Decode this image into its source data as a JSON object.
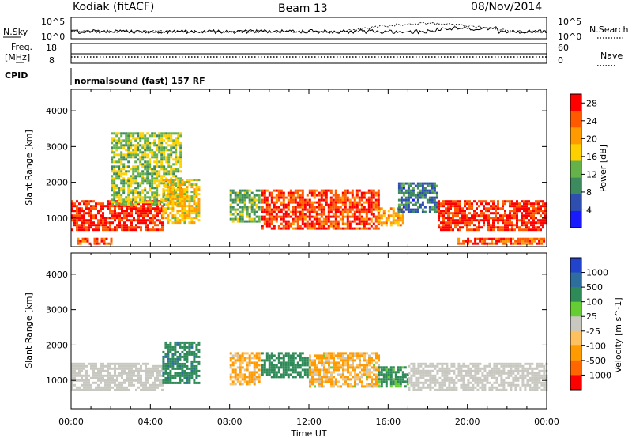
{
  "header": {
    "station": "Kodiak (fitACF)",
    "beam": "Beam 13",
    "date": "08/Nov/2014"
  },
  "top_panels": {
    "nsky_label": "N.Sky",
    "nsky_ticks": [
      "10^5",
      "10^0"
    ],
    "nsearch_label": "N.Search",
    "nsearch_ticks": [
      "10^5",
      "10^0"
    ],
    "freq_label_1": "Freq.",
    "freq_label_2": "[MHz]",
    "freq_ticks": [
      "18",
      "8"
    ],
    "nave_label": "Nave",
    "nave_ticks": [
      "60",
      "0"
    ],
    "cpid_label": "CPID",
    "cpid_text": "normalsound (fast) 157 RF"
  },
  "colors": {
    "power_scale": [
      "#1a1aff",
      "#2e4fb0",
      "#3d8a5e",
      "#66b24a",
      "#ffd000",
      "#ff9a00",
      "#ff5a00",
      "#ff0000"
    ],
    "velocity_scale": [
      "#ff0000",
      "#ff6600",
      "#ff9a00",
      "#ffc060",
      "#c8c8c0",
      "#66cc33",
      "#2e8b57",
      "#2e6e9e",
      "#2244cc"
    ],
    "ground_scatter": "#c8c8c0"
  },
  "chart_data": [
    {
      "type": "heatmap",
      "title": "",
      "xlabel": "Time UT",
      "ylabel": "Slant Range [km]",
      "x_ticks": [
        "00:00",
        "04:00",
        "08:00",
        "12:00",
        "16:00",
        "20:00",
        "00:00"
      ],
      "xlim": [
        0,
        24
      ],
      "y_ticks": [
        "1000",
        "2000",
        "3000",
        "4000"
      ],
      "ylim": [
        200,
        4600
      ],
      "colorbar_label": "Power [dB]",
      "colorbar_ticks": [
        "4",
        "8",
        "12",
        "16",
        "20",
        "24",
        "28"
      ],
      "colorbar_range": [
        0,
        30
      ],
      "regions": [
        {
          "t0": 0.0,
          "t1": 4.6,
          "r0": 700,
          "r1": 1500,
          "level": 27
        },
        {
          "t0": 0.3,
          "t1": 2.0,
          "r0": 300,
          "r1": 450,
          "level": 25
        },
        {
          "t0": 2.0,
          "t1": 5.5,
          "r0": 1400,
          "r1": 3400,
          "level": 14
        },
        {
          "t0": 4.6,
          "t1": 6.5,
          "r0": 900,
          "r1": 2100,
          "level": 18
        },
        {
          "t0": 8.0,
          "t1": 9.5,
          "r0": 900,
          "r1": 1800,
          "level": 12
        },
        {
          "t0": 9.6,
          "t1": 15.5,
          "r0": 700,
          "r1": 1800,
          "level": 26
        },
        {
          "t0": 15.5,
          "t1": 16.8,
          "r0": 800,
          "r1": 1300,
          "level": 20
        },
        {
          "t0": 16.5,
          "t1": 18.5,
          "r0": 1200,
          "r1": 2000,
          "level": 8
        },
        {
          "t0": 18.5,
          "t1": 24.0,
          "r0": 700,
          "r1": 1500,
          "level": 27
        },
        {
          "t0": 19.5,
          "t1": 24.0,
          "r0": 300,
          "r1": 450,
          "level": 25
        }
      ]
    },
    {
      "type": "heatmap",
      "title": "",
      "xlabel": "Time UT",
      "ylabel": "Slant Range [km]",
      "x_ticks": [
        "00:00",
        "04:00",
        "08:00",
        "12:00",
        "16:00",
        "20:00",
        "00:00"
      ],
      "xlim": [
        0,
        24
      ],
      "y_ticks": [
        "1000",
        "2000",
        "3000",
        "4000"
      ],
      "ylim": [
        200,
        4600
      ],
      "colorbar_label": "Velocity [m s^-1]",
      "colorbar_ticks": [
        "1000",
        "500",
        "100",
        "25",
        "-25",
        "-100",
        "-500",
        "-1000"
      ],
      "colorbar_range": [
        -1000,
        1000
      ],
      "regions": [
        {
          "t0": 0.0,
          "t1": 4.6,
          "r0": 700,
          "r1": 1500,
          "value": 0,
          "ground": true
        },
        {
          "t0": 4.6,
          "t1": 6.5,
          "r0": 900,
          "r1": 2100,
          "value": 400
        },
        {
          "t0": 8.0,
          "t1": 9.5,
          "r0": 900,
          "r1": 1800,
          "value": -150
        },
        {
          "t0": 9.6,
          "t1": 12.0,
          "r0": 1100,
          "r1": 1800,
          "value": 300
        },
        {
          "t0": 12.0,
          "t1": 15.5,
          "r0": 800,
          "r1": 1800,
          "value": -120
        },
        {
          "t0": 15.5,
          "t1": 17.0,
          "r0": 800,
          "r1": 1400,
          "value": 200
        },
        {
          "t0": 17.0,
          "t1": 24.0,
          "r0": 700,
          "r1": 1500,
          "value": 0,
          "ground": true
        }
      ]
    }
  ]
}
